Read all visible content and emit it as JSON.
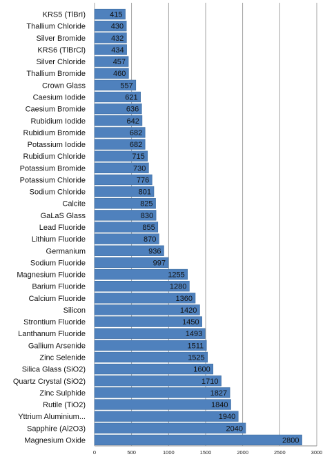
{
  "chart_data": {
    "type": "bar",
    "orientation": "horizontal",
    "title": "",
    "xlabel": "",
    "ylabel": "",
    "xlim": [
      0,
      3000
    ],
    "xticks": [
      0,
      500,
      1000,
      1500,
      2000,
      2500,
      3000
    ],
    "grid": "vertical",
    "legend": "none",
    "bar_color": "#4f81bd",
    "bar_edge_color": "#3a6a9e",
    "categories": [
      "KRS5 (TlBrI)",
      "Thallium Chloride",
      "Silver Bromide",
      "KRS6 (TlBrCl)",
      "Silver Chloride",
      "Thallium Bromide",
      "Crown Glass",
      "Caesium Iodide",
      "Caesium Bromide",
      "Rubidium Iodide",
      "Rubidium Bromide",
      "Potassium Iodide",
      "Rubidium Chloride",
      "Potassium Bromide",
      "Potassium Chloride",
      "Sodium Chloride",
      "Calcite",
      "GaLaS Glass",
      "Lead Fluoride",
      "Lithium Fluoride",
      "Germanium",
      "Sodium Fluoride",
      "Magnesium Fluoride",
      "Barium Fluoride",
      "Calcium Fluoride",
      "Silicon",
      "Strontium Fluoride",
      "Lanthanum Fluoride",
      "Gallium Arsenide",
      "Zinc Selenide",
      "Silica Glass (SiO2)",
      "Quartz Crystal (SiO2)",
      "Zinc Sulphide",
      "Rutile (TiO2)",
      "Yttrium Aluminium...",
      "Sapphire (Al2O3)",
      "Magnesium Oxide"
    ],
    "values": [
      415,
      430,
      432,
      434,
      457,
      460,
      557,
      621,
      636,
      642,
      682,
      682,
      715,
      730,
      776,
      801,
      825,
      830,
      855,
      870,
      936,
      997,
      1255,
      1280,
      1360,
      1420,
      1450,
      1493,
      1511,
      1525,
      1600,
      1710,
      1827,
      1840,
      1940,
      2040,
      2800
    ]
  }
}
